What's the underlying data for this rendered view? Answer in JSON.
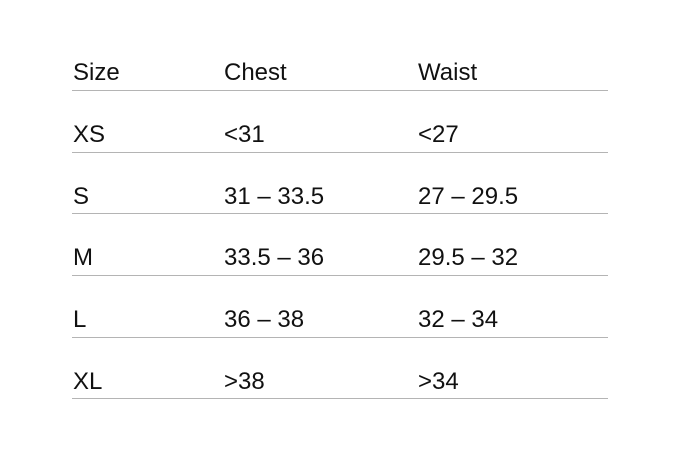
{
  "table": {
    "headers": [
      "Size",
      "Chest",
      "Waist"
    ],
    "rows": [
      [
        "XS",
        "<31",
        "<27"
      ],
      [
        "S",
        "31 – 33.5",
        "27 – 29.5"
      ],
      [
        "M",
        "33.5 – 36",
        "29.5 – 32"
      ],
      [
        "L",
        "36 – 38",
        "32 – 34"
      ],
      [
        "XL",
        ">38",
        ">34"
      ]
    ]
  }
}
